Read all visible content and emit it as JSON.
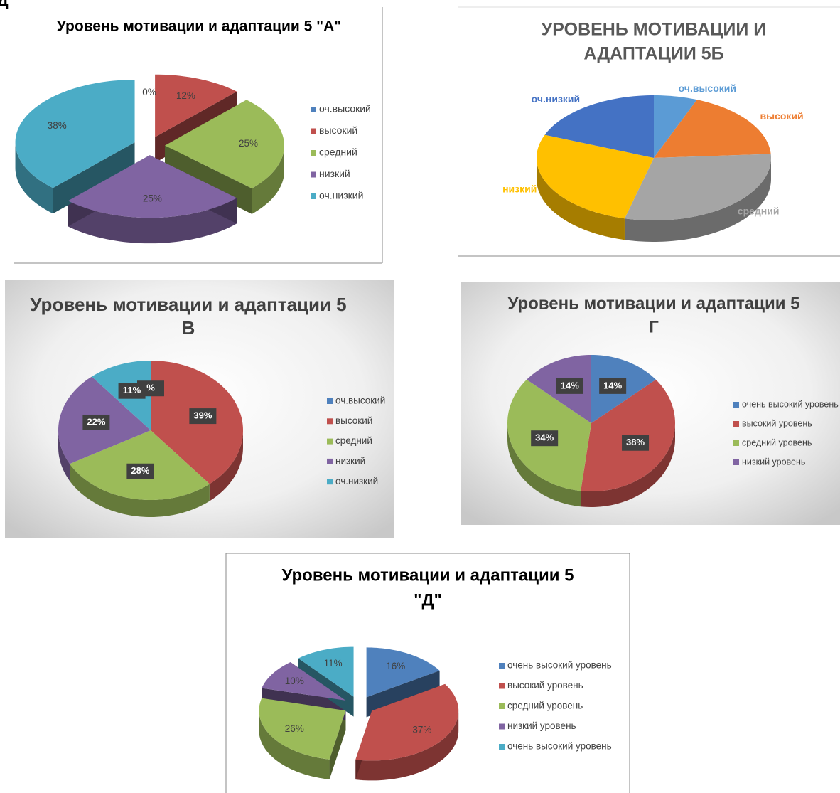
{
  "fragment": "Д",
  "chart_data": [
    {
      "type": "pie",
      "title": [
        "Уровень мотивации и адаптации 5 \"А\""
      ],
      "categories": [
        "оч.высокий",
        "высокий",
        "средний",
        "низкий",
        "оч.низкий"
      ],
      "values": [
        0,
        12,
        25,
        25,
        38
      ],
      "value_labels": [
        "0%",
        "12%",
        "25%",
        "25%",
        "38%"
      ],
      "colors": [
        "#4f81bd",
        "#c0504d",
        "#9bbb59",
        "#8064a2",
        "#4bacc6"
      ],
      "explode": true,
      "legend": true,
      "label_style": "plain"
    },
    {
      "type": "pie",
      "title": [
        "УРОВЕНЬ МОТИВАЦИИ И",
        "АДАПТАЦИИ 5Б"
      ],
      "categories": [
        "оч.высокий",
        "высокий",
        "средний",
        "низкий",
        "оч.низкий"
      ],
      "values": [
        6,
        18,
        30,
        27,
        19
      ],
      "colors": [
        "#5b9bd5",
        "#ed7d31",
        "#a5a5a5",
        "#ffc000",
        "#4472c4"
      ],
      "explode": false,
      "legend": false,
      "label_style": "category"
    },
    {
      "type": "pie",
      "title": [
        "Уровень мотивации и адаптации  5",
        "В"
      ],
      "categories": [
        "оч.высокий",
        "высокий",
        "средний",
        "низкий",
        "оч.низкий"
      ],
      "values": [
        0,
        39,
        28,
        22,
        11
      ],
      "value_labels": [
        "%",
        "39%",
        "28%",
        "22%",
        "11%"
      ],
      "colors": [
        "#4f81bd",
        "#c0504d",
        "#9bbb59",
        "#8064a2",
        "#4bacc6"
      ],
      "explode": false,
      "legend": true,
      "label_style": "boxed"
    },
    {
      "type": "pie",
      "title": [
        "Уровень мотивации и адаптации 5",
        "Г"
      ],
      "categories": [
        "очень высокий уровень",
        "высокий уровень",
        "средний уровень",
        "низкий уровень"
      ],
      "values": [
        14,
        38,
        34,
        14
      ],
      "value_labels": [
        "14%",
        "38%",
        "34%",
        "14%"
      ],
      "colors": [
        "#4f81bd",
        "#c0504d",
        "#9bbb59",
        "#8064a2"
      ],
      "explode": false,
      "legend": true,
      "label_style": "boxed"
    },
    {
      "type": "pie",
      "title": [
        "Уровень мотивации и адаптации 5",
        "\"Д\""
      ],
      "categories": [
        "очень высокий уровень",
        "высокий уровень",
        "средний уровень",
        "низкий уровень",
        "очень высокий уровень"
      ],
      "values": [
        16,
        37,
        26,
        10,
        11
      ],
      "value_labels": [
        "16%",
        "37%",
        "26%",
        "10%",
        "11%"
      ],
      "colors": [
        "#4f81bd",
        "#c0504d",
        "#9bbb59",
        "#8064a2",
        "#4bacc6"
      ],
      "explode": true,
      "legend": true,
      "label_style": "plain"
    }
  ]
}
